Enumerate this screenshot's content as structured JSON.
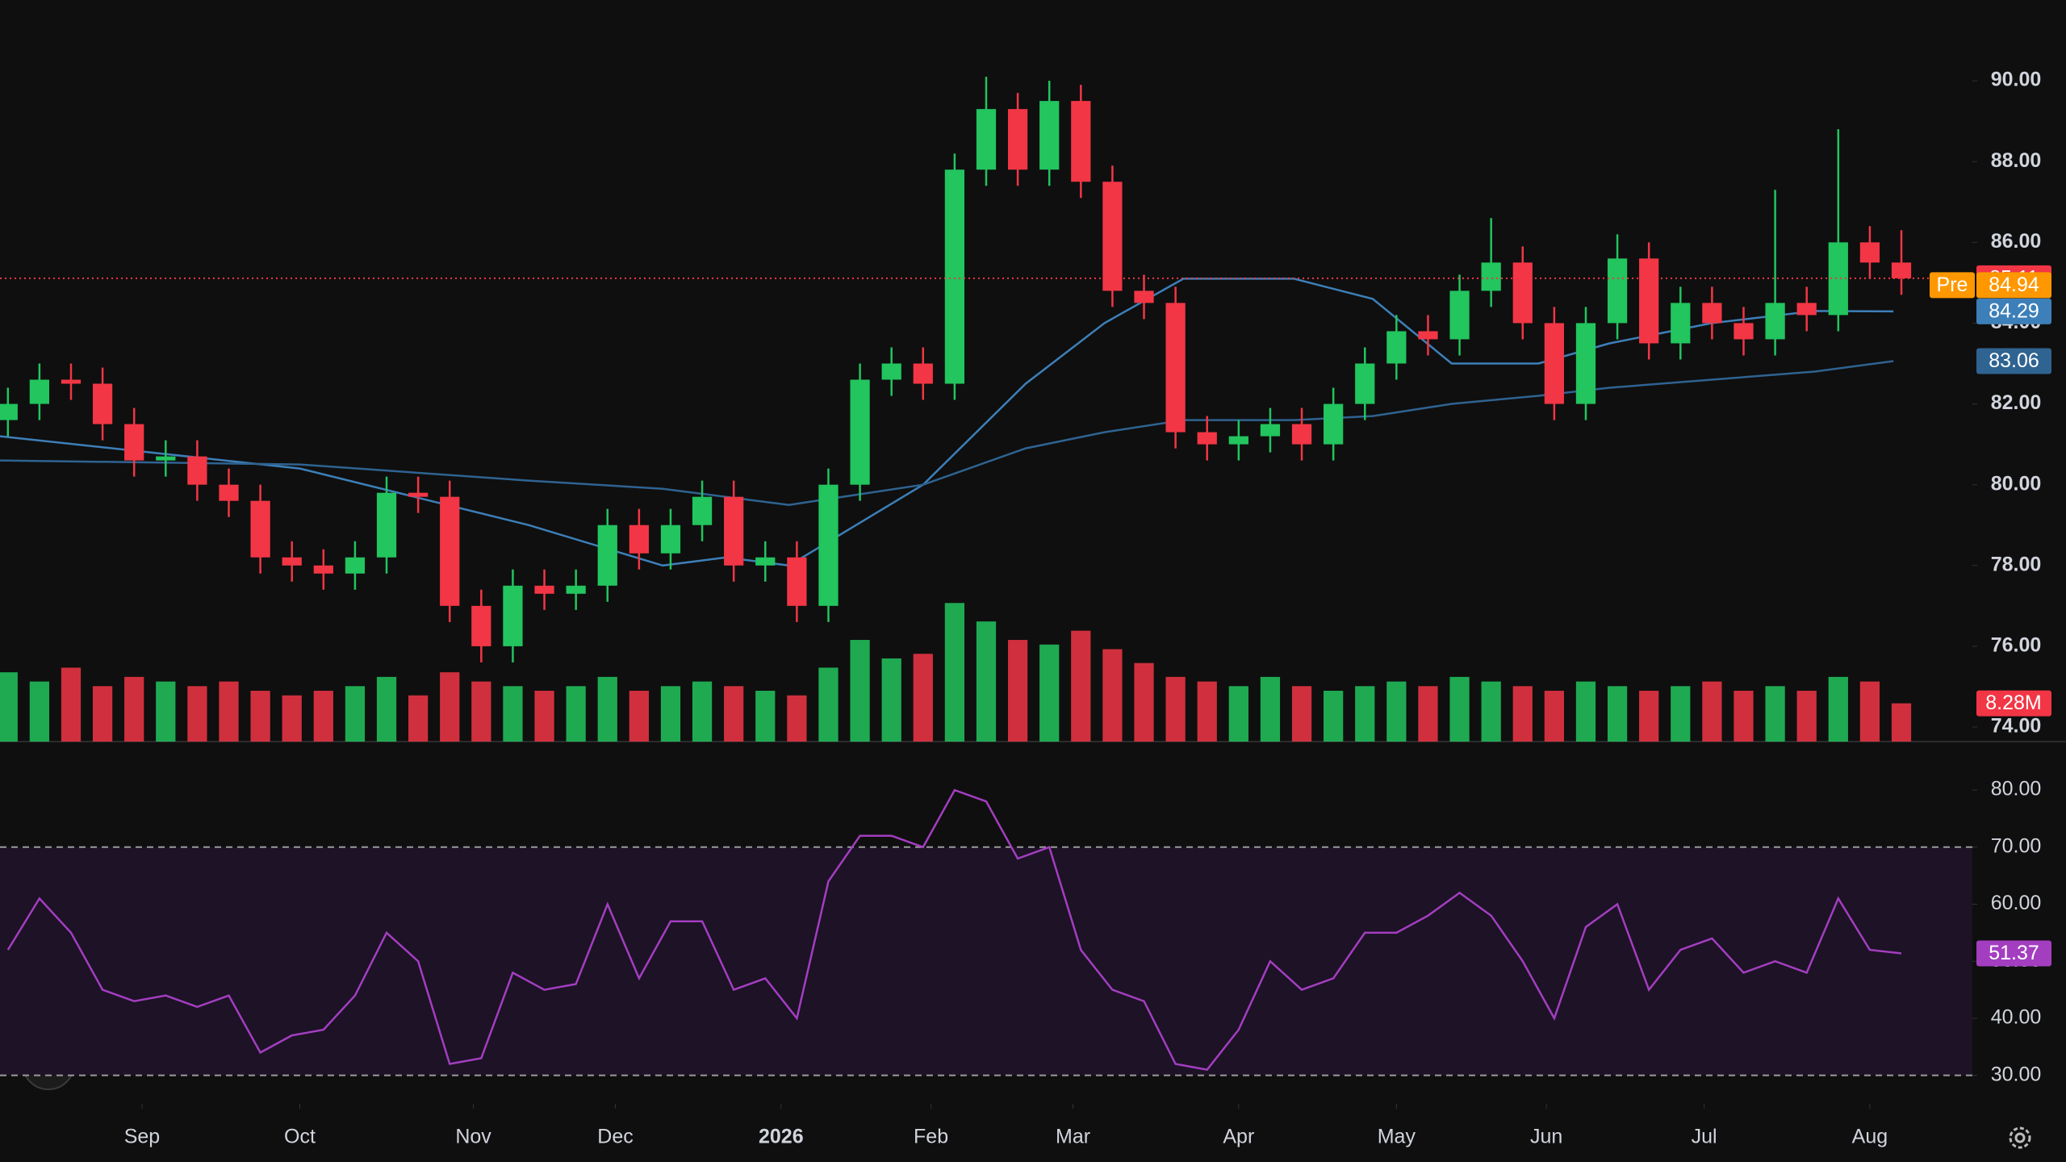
{
  "chart_data": {
    "type": "candlestick",
    "x": [
      1,
      5,
      9,
      13,
      17,
      21,
      25,
      29,
      33,
      37,
      41,
      45,
      49,
      53,
      57,
      61,
      65,
      69,
      73,
      77,
      81,
      85,
      89,
      93,
      97,
      101,
      105,
      109,
      113,
      117,
      121,
      125,
      129,
      133,
      137,
      141,
      145,
      149,
      153,
      157,
      161,
      165,
      169,
      173,
      177,
      181,
      185,
      189,
      193,
      197,
      201,
      205,
      209,
      213,
      217,
      221,
      225,
      229,
      233,
      237,
      241
    ],
    "open": [
      81.6,
      82.0,
      82.6,
      82.5,
      81.5,
      80.6,
      80.7,
      80.0,
      79.6,
      78.2,
      78.0,
      77.8,
      78.2,
      79.8,
      79.7,
      77.0,
      76.0,
      77.5,
      77.3,
      77.5,
      79.0,
      78.3,
      79.0,
      79.7,
      78.0,
      78.2,
      77.0,
      80.0,
      82.6,
      83.0,
      82.5,
      87.8,
      89.3,
      87.8,
      89.5,
      87.5,
      84.8,
      84.5,
      81.3,
      81.0,
      81.2,
      81.5,
      81.0,
      82.0,
      83.0,
      83.8,
      83.6,
      84.8,
      85.5,
      84.0,
      82.0,
      84.0,
      85.6,
      83.5,
      84.5,
      84.0,
      83.6,
      84.5,
      84.2,
      86.0,
      85.5
    ],
    "high": [
      82.4,
      83.0,
      83.0,
      82.9,
      81.9,
      81.1,
      81.1,
      80.4,
      80.0,
      78.6,
      78.4,
      78.6,
      80.2,
      80.2,
      80.1,
      77.4,
      77.9,
      77.9,
      77.9,
      79.4,
      79.4,
      79.4,
      80.1,
      80.1,
      78.6,
      78.6,
      80.4,
      83.0,
      83.4,
      83.4,
      88.2,
      90.1,
      89.7,
      90.0,
      89.9,
      87.9,
      85.2,
      84.9,
      81.7,
      81.6,
      81.9,
      81.9,
      82.4,
      83.4,
      84.2,
      84.2,
      85.2,
      86.6,
      85.9,
      84.4,
      84.4,
      86.2,
      86.0,
      84.9,
      84.9,
      84.4,
      87.3,
      84.9,
      88.8,
      86.4,
      86.3
    ],
    "low": [
      81.2,
      81.6,
      82.1,
      81.1,
      80.2,
      80.2,
      79.6,
      79.2,
      77.8,
      77.6,
      77.4,
      77.4,
      77.8,
      79.3,
      76.6,
      75.6,
      75.6,
      76.9,
      76.9,
      77.1,
      77.9,
      77.9,
      78.6,
      77.6,
      77.6,
      76.6,
      76.6,
      79.6,
      82.2,
      82.1,
      82.1,
      87.4,
      87.4,
      87.4,
      87.1,
      84.4,
      84.1,
      80.9,
      80.6,
      80.6,
      80.8,
      80.6,
      80.6,
      81.6,
      82.6,
      83.2,
      83.2,
      84.4,
      83.6,
      81.6,
      81.6,
      83.6,
      83.1,
      83.1,
      83.6,
      83.2,
      83.2,
      83.8,
      83.8,
      85.1,
      84.7
    ],
    "close": [
      82.0,
      82.6,
      82.5,
      81.5,
      80.6,
      80.7,
      80.0,
      79.6,
      78.2,
      78.0,
      77.8,
      78.2,
      79.8,
      79.7,
      77.0,
      76.0,
      77.5,
      77.3,
      77.5,
      79.0,
      78.3,
      79.0,
      79.7,
      78.0,
      78.2,
      77.0,
      80.0,
      82.6,
      83.0,
      82.5,
      87.8,
      89.3,
      87.8,
      89.5,
      87.5,
      84.8,
      84.5,
      81.3,
      81.0,
      81.2,
      81.5,
      81.0,
      82.0,
      83.0,
      83.8,
      83.6,
      84.8,
      85.5,
      84.0,
      82.0,
      84.0,
      85.6,
      83.5,
      84.5,
      84.0,
      83.6,
      84.5,
      84.2,
      86.0,
      85.5,
      85.11
    ],
    "up_color": "#22c55e",
    "down_color": "#f23645",
    "xlim": [
      0,
      250
    ],
    "xticks": [
      {
        "value": 18,
        "label": "Sep"
      },
      {
        "value": 38,
        "label": "Oct"
      },
      {
        "value": 60,
        "label": "Nov"
      },
      {
        "value": 78,
        "label": "Dec"
      },
      {
        "value": 99,
        "label": "2026"
      },
      {
        "value": 118,
        "label": "Feb"
      },
      {
        "value": 136,
        "label": "Mar"
      },
      {
        "value": 157,
        "label": "Apr"
      },
      {
        "value": 177,
        "label": "May"
      },
      {
        "value": 196,
        "label": "Jun"
      },
      {
        "value": 216,
        "label": "Jul"
      },
      {
        "value": 237,
        "label": "Aug"
      }
    ],
    "ylim": [
      73.64,
      92.0
    ],
    "yticks": [
      {
        "value": 74,
        "label": "74.00"
      },
      {
        "value": 76,
        "label": "76.00"
      },
      {
        "value": 78,
        "label": "78.00"
      },
      {
        "value": 80,
        "label": "80.00"
      },
      {
        "value": 82,
        "label": "82.00"
      },
      {
        "value": 84,
        "label": "84.00"
      },
      {
        "value": 86,
        "label": "86.00"
      },
      {
        "value": 88,
        "label": "88.00"
      },
      {
        "value": 90,
        "label": "90.00"
      }
    ],
    "grid": false,
    "premarket": {
      "label": "Pre",
      "value": 84.94,
      "color": "#ff9800"
    },
    "ma": [
      {
        "color": "#3d7fb8",
        "x": [
          0,
          38,
          67,
          84,
          92,
          100,
          117,
          130,
          140,
          150,
          164,
          174,
          184,
          195,
          204,
          217,
          230,
          240
        ],
        "values": [
          81.2,
          80.4,
          79.0,
          78.0,
          78.2,
          78.0,
          80.0,
          82.5,
          84.0,
          85.1,
          85.1,
          84.6,
          83.0,
          83.0,
          83.5,
          84.0,
          84.3,
          84.29
        ]
      },
      {
        "color": "#2f6391",
        "x": [
          0,
          38,
          67,
          84,
          92,
          100,
          117,
          130,
          140,
          150,
          164,
          174,
          184,
          195,
          204,
          217,
          230,
          240
        ],
        "values": [
          80.6,
          80.5,
          80.1,
          79.9,
          79.7,
          79.5,
          80.0,
          80.9,
          81.3,
          81.6,
          81.6,
          81.7,
          82.0,
          82.2,
          82.4,
          82.6,
          82.8,
          83.06
        ]
      }
    ],
    "volume": {
      "vlim": [
        0,
        40
      ],
      "last_label": "8.28M",
      "values": [
        15,
        13,
        16,
        12,
        14,
        13,
        12,
        13,
        11,
        10,
        11,
        12,
        14,
        10,
        15,
        13,
        12,
        11,
        12,
        14,
        11,
        12,
        13,
        12,
        11,
        10,
        16,
        22,
        18,
        19,
        30,
        26,
        22,
        21,
        24,
        20,
        17,
        14,
        13,
        12,
        14,
        12,
        11,
        12,
        13,
        12,
        14,
        13,
        12,
        11,
        13,
        12,
        11,
        12,
        13,
        11,
        12,
        11,
        14,
        13,
        8.28
      ]
    },
    "rsi": {
      "color": "#a33ec0",
      "ylim": [
        25,
        88.5
      ],
      "bands": [
        30,
        70
      ],
      "yticks": [
        {
          "value": 30,
          "label": "30.00"
        },
        {
          "value": 40,
          "label": "40.00"
        },
        {
          "value": 50,
          "label": "50.00"
        },
        {
          "value": 60,
          "label": "60.00"
        },
        {
          "value": 70,
          "label": "70.00"
        },
        {
          "value": 80,
          "label": "80.00"
        }
      ],
      "values": [
        52,
        61,
        55,
        45,
        43,
        44,
        42,
        44,
        34,
        37,
        38,
        44,
        55,
        50,
        32,
        33,
        48,
        45,
        46,
        60,
        47,
        57,
        57,
        45,
        47,
        40,
        64,
        72,
        72,
        70,
        80,
        78,
        68,
        70,
        52,
        45,
        43,
        32,
        31,
        38,
        50,
        45,
        47,
        55,
        55,
        58,
        62,
        58,
        50,
        40,
        56,
        60,
        45,
        52,
        54,
        48,
        50,
        48,
        61,
        52,
        51.37
      ]
    }
  }
}
